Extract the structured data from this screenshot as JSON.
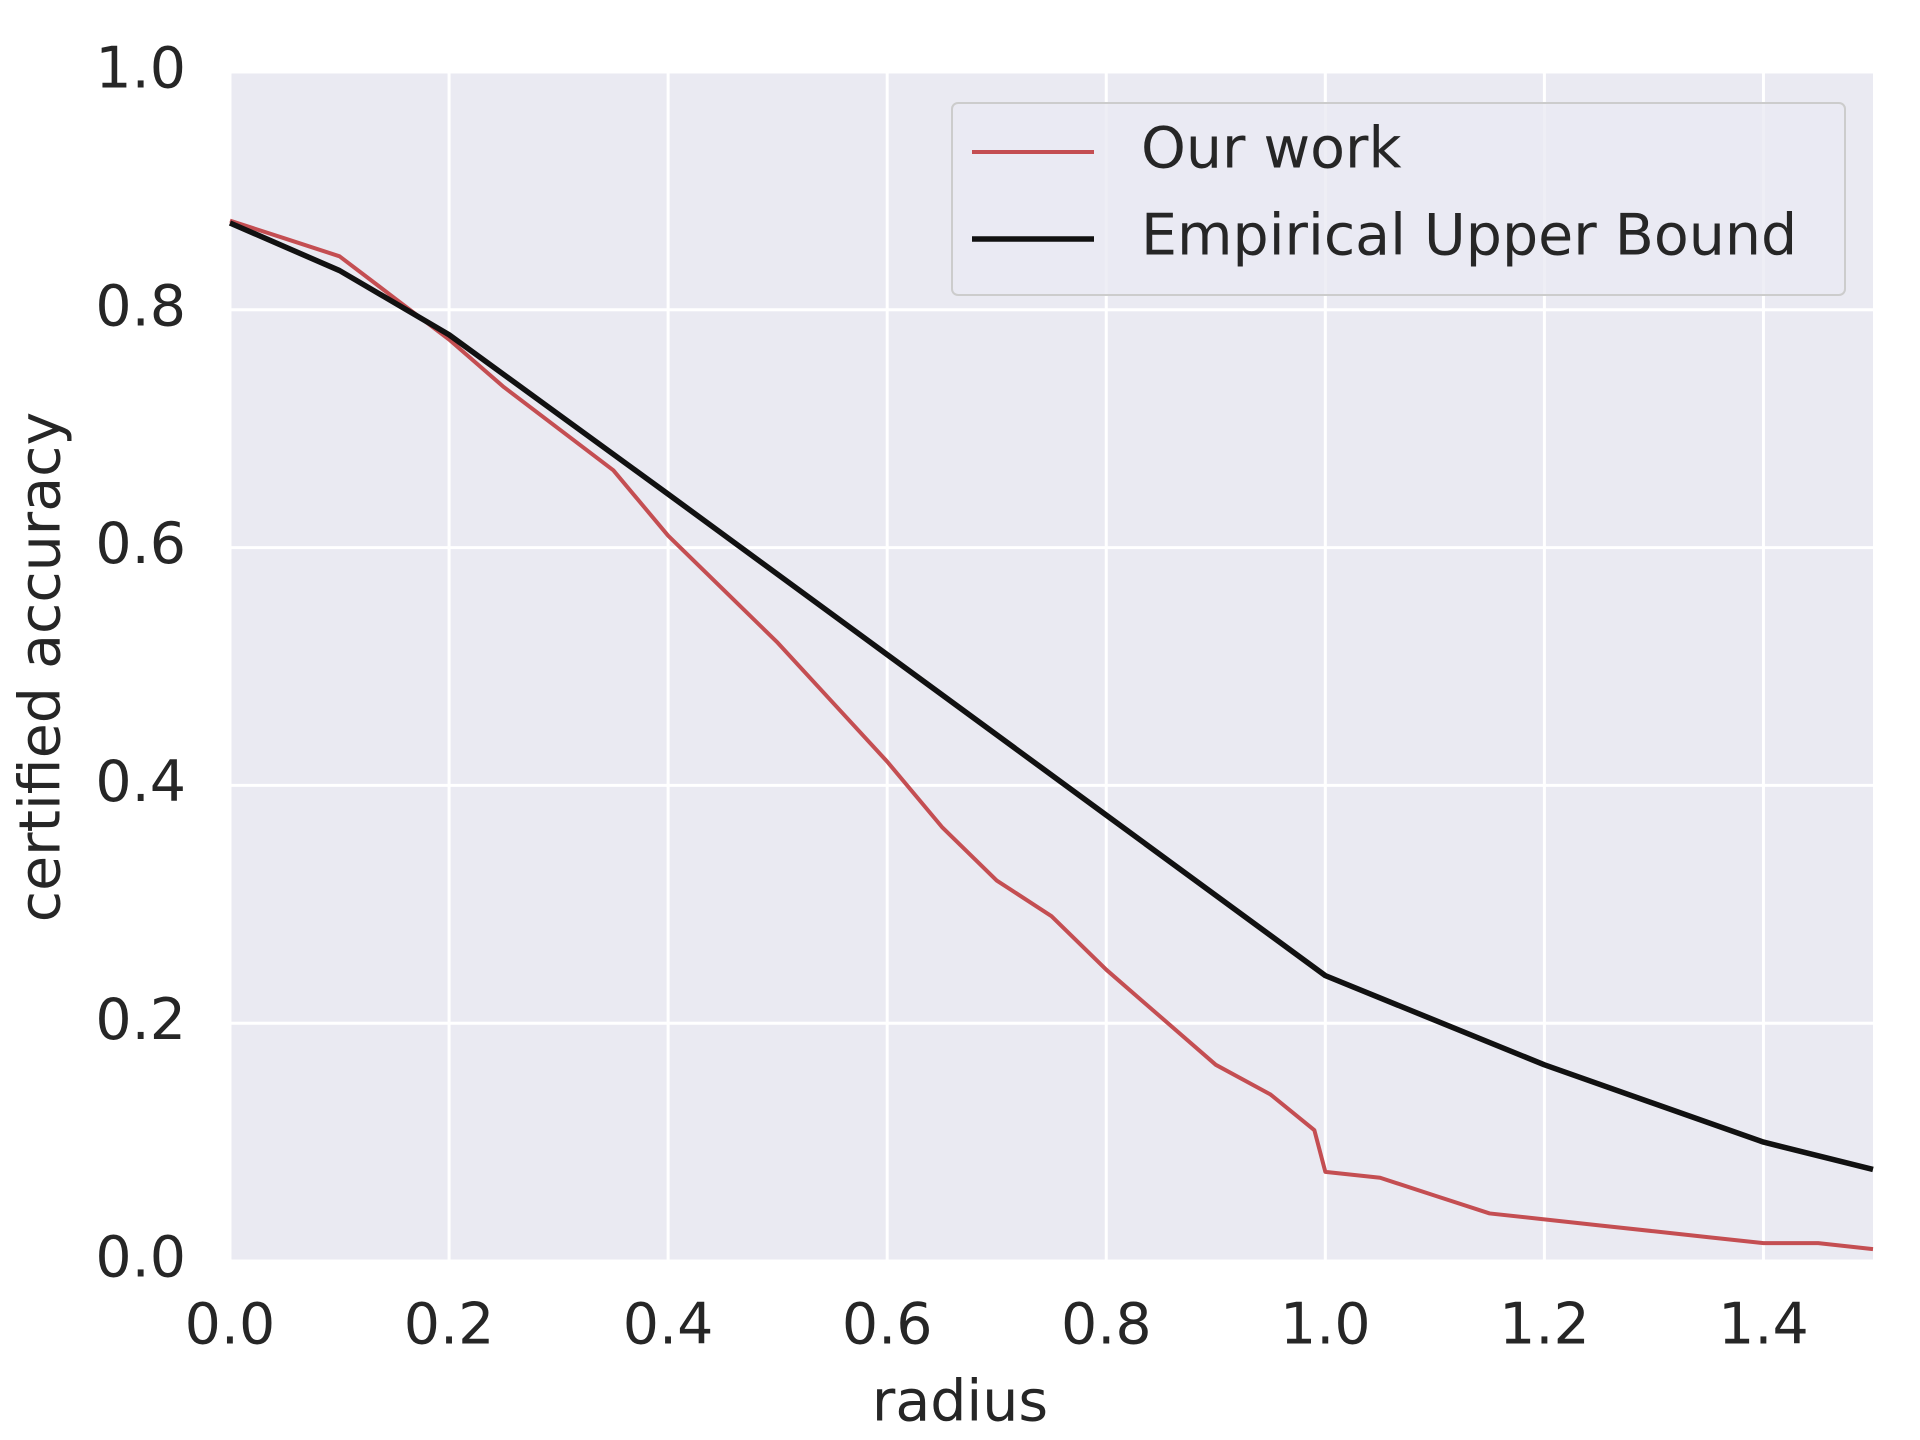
{
  "chart_data": {
    "type": "line",
    "xlabel": "radius",
    "ylabel": "certified accuracy",
    "xlim": [
      0.0,
      1.5
    ],
    "ylim": [
      0.0,
      1.0
    ],
    "xticks": [
      {
        "value": 0,
        "label": "0.0"
      },
      0.2,
      0.4,
      0.6,
      0.8,
      {
        "value": 1,
        "label": "1.0"
      },
      1.2,
      1.4
    ],
    "yticks": [
      {
        "value": 0,
        "label": "0.0"
      },
      0.2,
      0.4,
      0.6,
      0.8,
      {
        "value": 1,
        "label": "1.0"
      }
    ],
    "grid": true,
    "legend": "upper right",
    "series": [
      {
        "name": "Our work",
        "color": "#c44e52",
        "x": [
          0,
          0.05,
          0.1,
          0.15,
          0.2,
          0.25,
          0.3,
          0.35,
          0.4,
          0.45,
          0.5,
          0.55,
          0.6,
          0.65,
          0.7,
          0.75,
          0.8,
          0.85,
          0.9,
          0.95,
          0.99,
          1.0,
          1.05,
          1.1,
          1.15,
          1.2,
          1.25,
          1.3,
          1.35,
          1.4,
          1.45,
          1.5
        ],
        "values": [
          0.875,
          0.86,
          0.845,
          0.81,
          0.775,
          0.735,
          0.7,
          0.665,
          0.61,
          0.565,
          0.52,
          0.47,
          0.42,
          0.365,
          0.32,
          0.29,
          0.245,
          0.205,
          0.165,
          0.14,
          0.11,
          0.075,
          0.07,
          0.055,
          0.04,
          0.035,
          0.03,
          0.025,
          0.02,
          0.015,
          0.015,
          0.01
        ]
      },
      {
        "name": "Empirical Upper Bound",
        "color": "#111111",
        "x": [
          0,
          0.1,
          0.2,
          0.3,
          0.4,
          0.6,
          0.8,
          1.0,
          1.2,
          1.4,
          1.5
        ],
        "values": [
          0.873,
          0.833,
          0.779,
          0.712,
          0.645,
          0.51,
          0.375,
          0.24,
          0.165,
          0.1,
          0.077
        ]
      }
    ]
  }
}
